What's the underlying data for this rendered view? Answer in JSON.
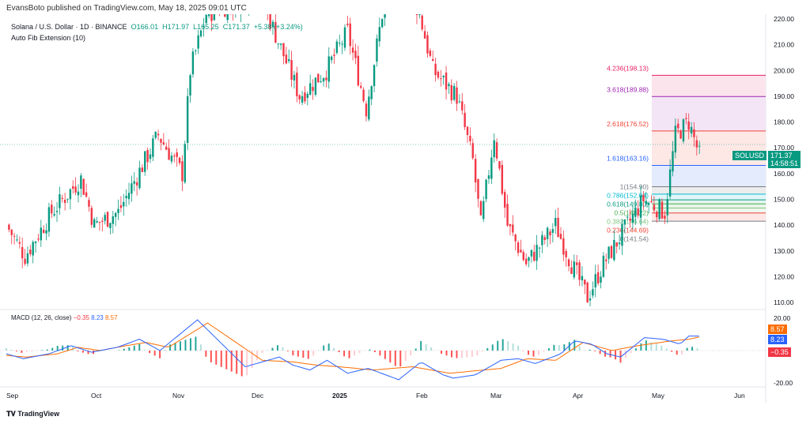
{
  "header": {
    "published": "EvansBoto published on TradingView.com, May 18, 2025 09:01 UTC"
  },
  "legend": {
    "symbol": "Solana / U.S. Dollar · 1D · BINANCE",
    "o": "O166.01",
    "h": "H171.97",
    "l": "L165.25",
    "c": "C171.37",
    "chg": "+5.38 (+3.24%)",
    "indicator": "Auto Fib Extension (10)"
  },
  "macd_legend": {
    "label": "MACD (12, 26, close)",
    "hist": "−0.35",
    "macd": "8.23",
    "signal": "8.57"
  },
  "price_tag": {
    "symbol": "SOLUSD",
    "price": "171.37",
    "countdown": "14:58:51"
  },
  "macd_tags": {
    "signal": "8.57",
    "macd": "8.23",
    "hist": "−0.35"
  },
  "colors": {
    "up": "#089981",
    "down": "#f23645",
    "macd": "#2962ff",
    "signal": "#ff6d00"
  },
  "footer": {
    "brand": "TradingView"
  },
  "chart_data": {
    "type": "candlestick",
    "title": "Solana / U.S. Dollar · 1D · BINANCE",
    "y_ticks": [
      "220.00",
      "210.00",
      "200.00",
      "190.00",
      "180.00",
      "170.00",
      "160.00",
      "150.00",
      "140.00",
      "130.00",
      "120.00",
      "110.00"
    ],
    "ylim": [
      108,
      222
    ],
    "x_ticks": [
      "Sep",
      "Oct",
      "Nov",
      "Dec",
      "2025",
      "Feb",
      "Mar",
      "Apr",
      "May",
      "Jun"
    ],
    "close_path": [
      [
        0,
        140
      ],
      [
        7,
        128
      ],
      [
        17,
        145
      ],
      [
        28,
        158
      ],
      [
        33,
        140
      ],
      [
        42,
        145
      ],
      [
        57,
        175
      ],
      [
        66,
        160
      ],
      [
        69,
        200
      ],
      [
        75,
        222
      ],
      [
        95,
        230
      ],
      [
        110,
        190
      ],
      [
        120,
        200
      ],
      [
        128,
        215
      ],
      [
        135,
        185
      ],
      [
        141,
        222
      ],
      [
        150,
        235
      ],
      [
        155,
        222
      ],
      [
        160,
        200
      ],
      [
        169,
        190
      ],
      [
        175,
        165
      ],
      [
        178,
        140
      ],
      [
        183,
        175
      ],
      [
        188,
        140
      ],
      [
        195,
        125
      ],
      [
        206,
        140
      ],
      [
        212,
        125
      ],
      [
        218,
        112
      ],
      [
        224,
        125
      ],
      [
        233,
        140
      ],
      [
        239,
        150
      ],
      [
        247,
        145
      ],
      [
        251,
        175
      ],
      [
        256,
        180
      ],
      [
        260,
        167
      ],
      [
        260.5,
        171.37
      ]
    ],
    "fib": [
      {
        "label": "4.236(198.13)",
        "value": 198.13,
        "color": "#e91e63",
        "fill": "#fce4ec"
      },
      {
        "label": "3.618(189.88)",
        "value": 189.88,
        "color": "#9c27b0",
        "fill": "#f3e5f5"
      },
      {
        "label": "2.618(176.52)",
        "value": 176.52,
        "color": "#f44336",
        "fill": "#fde8e6"
      },
      {
        "label": "1.618(163.16)",
        "value": 163.16,
        "color": "#2962ff",
        "fill": "#e3ebfd"
      },
      {
        "label": "1(154.90)",
        "value": 154.9,
        "color": "#787b86",
        "fill": "#ececec"
      },
      {
        "label": "0.786(152.04)",
        "value": 152.04,
        "color": "#00bcd4",
        "fill": "#e0f6f9"
      },
      {
        "label": "0.618(149.80)",
        "value": 149.8,
        "color": "#089981",
        "fill": "#e3f4ef"
      },
      {
        "label": "0.5(148.22)",
        "value": 148.22,
        "color": "#4caf50",
        "fill": "#e8f5e9"
      },
      {
        "label": "0.382(146.64)",
        "value": 146.64,
        "color": "#81c784",
        "fill": "#edf7ee"
      },
      {
        "label": "0.236(144.69)",
        "value": 144.69,
        "color": "#f44336",
        "fill": "#fde8e6"
      },
      {
        "label": "0(141.54)",
        "value": 141.54,
        "color": "#787b86",
        "fill": ""
      }
    ],
    "macd": {
      "y_ticks": [
        "20.00",
        "-20.00"
      ],
      "ylim": [
        -20,
        20
      ],
      "macd_path": [
        [
          0,
          -2
        ],
        [
          10,
          -5
        ],
        [
          25,
          -2
        ],
        [
          38,
          3
        ],
        [
          50,
          -1
        ],
        [
          65,
          2
        ],
        [
          78,
          7
        ],
        [
          90,
          0
        ],
        [
          112,
          19
        ],
        [
          140,
          -10
        ],
        [
          160,
          -4
        ],
        [
          168,
          -9
        ],
        [
          178,
          -12
        ],
        [
          188,
          -6
        ],
        [
          200,
          -14
        ],
        [
          212,
          -11
        ],
        [
          230,
          -18
        ],
        [
          243,
          -7
        ],
        [
          256,
          -15
        ],
        [
          262,
          -17
        ],
        [
          275,
          -15
        ],
        [
          290,
          -6
        ],
        [
          300,
          -5
        ],
        [
          310,
          -8
        ],
        [
          325,
          -2
        ],
        [
          333,
          6
        ],
        [
          343,
          4
        ],
        [
          352,
          -2
        ],
        [
          360,
          -4
        ],
        [
          374,
          8
        ],
        [
          385,
          7
        ],
        [
          395,
          4
        ],
        [
          400,
          9
        ],
        [
          407,
          9
        ]
      ],
      "signal_path": [
        [
          0,
          -3
        ],
        [
          12,
          -4
        ],
        [
          30,
          -2
        ],
        [
          42,
          2
        ],
        [
          55,
          0
        ],
        [
          70,
          3
        ],
        [
          82,
          5
        ],
        [
          95,
          2
        ],
        [
          118,
          17
        ],
        [
          150,
          -6
        ],
        [
          168,
          -7
        ],
        [
          182,
          -9
        ],
        [
          195,
          -10
        ],
        [
          215,
          -12
        ],
        [
          238,
          -10
        ],
        [
          260,
          -14
        ],
        [
          290,
          -11
        ],
        [
          305,
          -5
        ],
        [
          322,
          -6
        ],
        [
          338,
          5
        ],
        [
          355,
          0
        ],
        [
          370,
          3
        ],
        [
          390,
          6
        ],
        [
          400,
          7
        ],
        [
          407,
          8.57
        ]
      ]
    }
  }
}
